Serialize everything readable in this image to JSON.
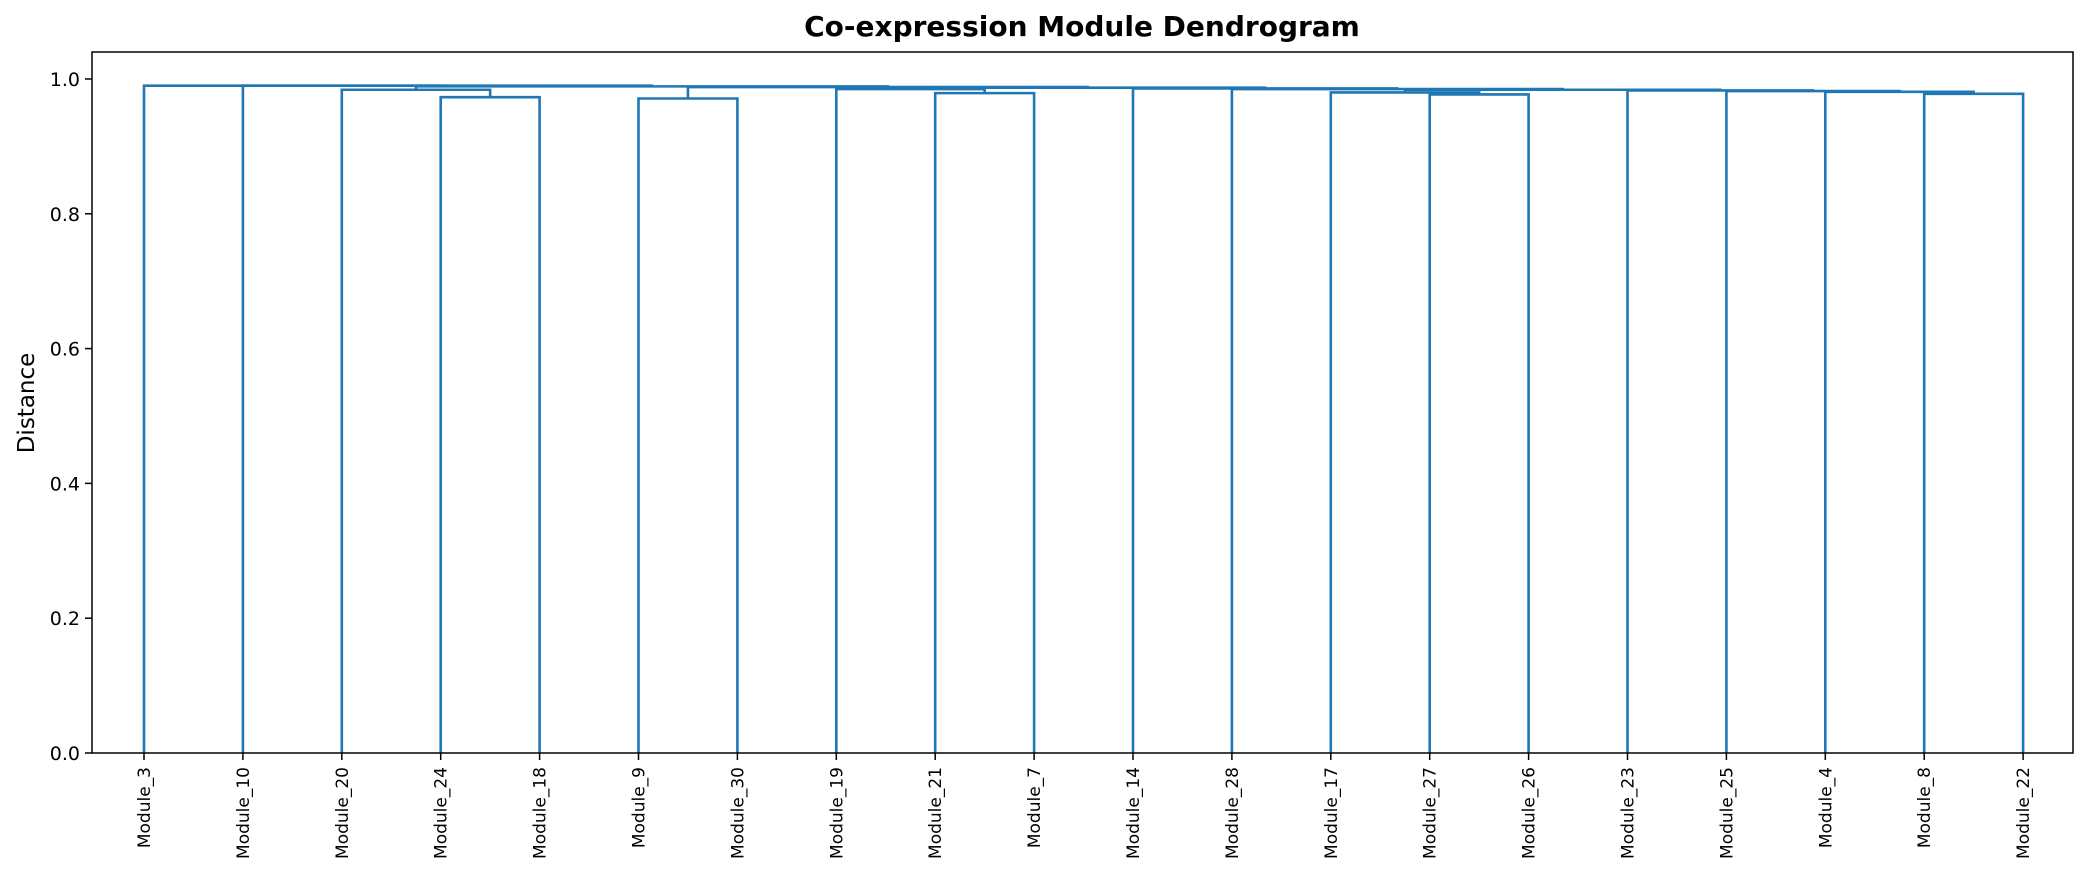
{
  "chart_data": {
    "type": "dendrogram",
    "title": "Co-expression Module Dendrogram",
    "ylabel": "Distance",
    "xlabel": "",
    "ylim": [
      0,
      1.04
    ],
    "yticks": [
      "0.0",
      "0.2",
      "0.4",
      "0.6",
      "0.8",
      "1.0"
    ],
    "grid": false,
    "line_color": "#1f77b4",
    "leaves": [
      "Module_3",
      "Module_10",
      "Module_20",
      "Module_24",
      "Module_18",
      "Module_9",
      "Module_30",
      "Module_19",
      "Module_21",
      "Module_7",
      "Module_14",
      "Module_28",
      "Module_17",
      "Module_27",
      "Module_26",
      "Module_23",
      "Module_25",
      "Module_4",
      "Module_8",
      "Module_22"
    ],
    "merges": [
      {
        "left": "L3",
        "right": "L4",
        "height": 0.973
      },
      {
        "left": "L2",
        "right": "M0",
        "height": 0.984
      },
      {
        "left": "L5",
        "right": "L6",
        "height": 0.971
      },
      {
        "left": "L8",
        "right": "L9",
        "height": 0.979
      },
      {
        "left": "L7",
        "right": "M3",
        "height": 0.985
      },
      {
        "left": "L13",
        "right": "L14",
        "height": 0.977
      },
      {
        "left": "L12",
        "right": "M5",
        "height": 0.98
      },
      {
        "left": "L18",
        "right": "L19",
        "height": 0.978
      },
      {
        "left": "L17",
        "right": "M7",
        "height": 0.981
      },
      {
        "left": "L16",
        "right": "M8",
        "height": 0.982
      },
      {
        "left": "L15",
        "right": "M9",
        "height": 0.983
      },
      {
        "left": "M6",
        "right": "M10",
        "height": 0.984
      },
      {
        "left": "L11",
        "right": "M11",
        "height": 0.985
      },
      {
        "left": "L10",
        "right": "M12",
        "height": 0.986
      },
      {
        "left": "M4",
        "right": "M13",
        "height": 0.987
      },
      {
        "left": "M2",
        "right": "M14",
        "height": 0.988
      },
      {
        "left": "M1",
        "right": "M15",
        "height": 0.989
      },
      {
        "left": "L1",
        "right": "M16",
        "height": 0.99
      },
      {
        "left": "L0",
        "right": "M17",
        "height": 0.99
      }
    ]
  }
}
